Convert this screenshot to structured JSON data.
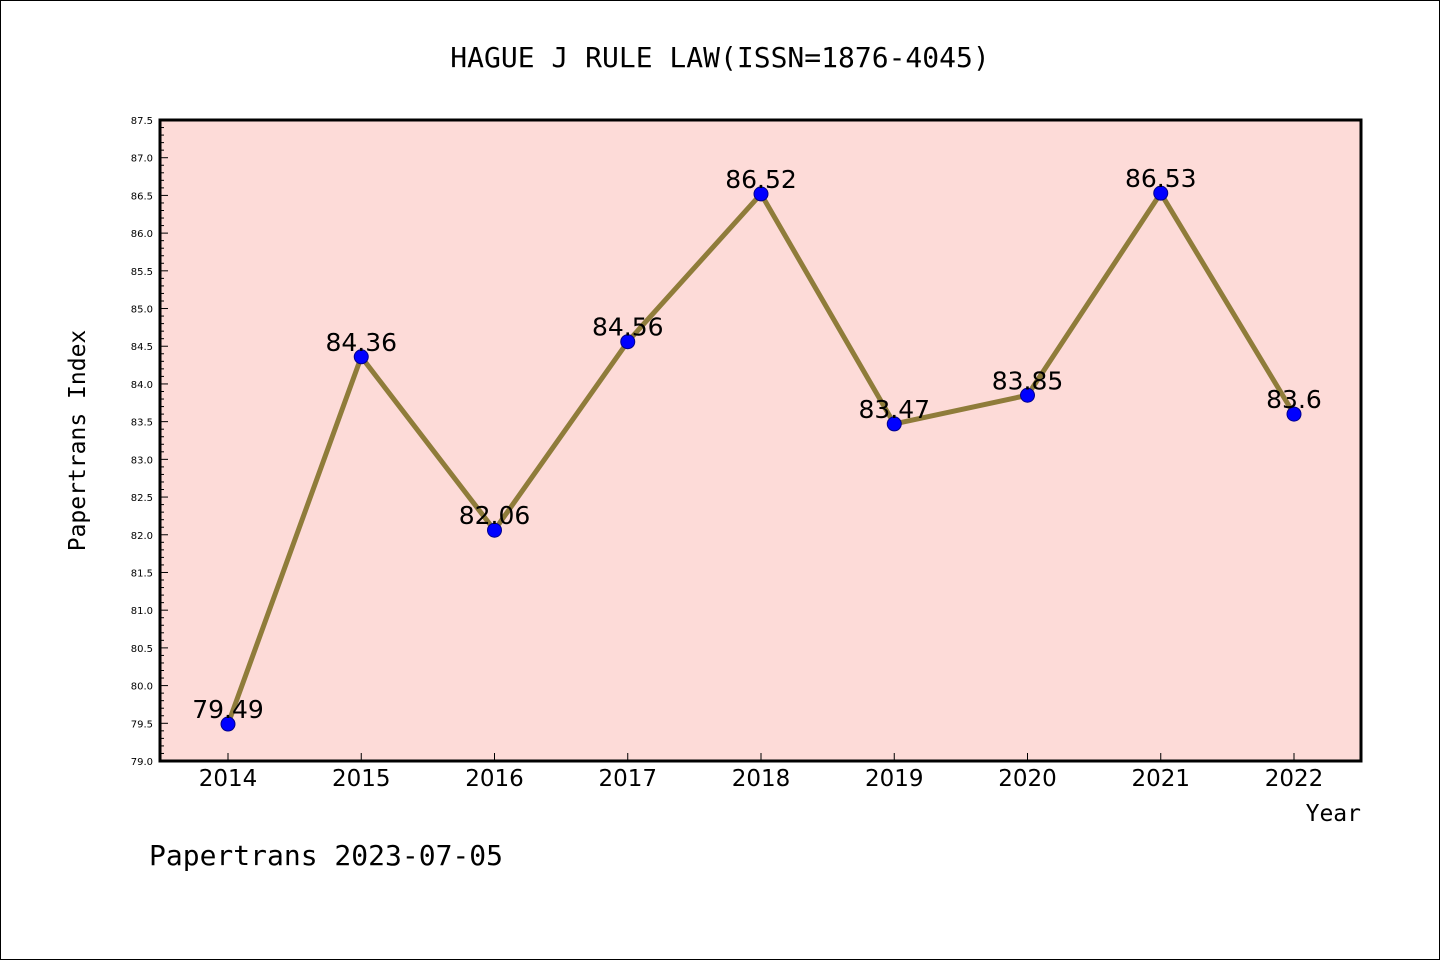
{
  "chart_data": {
    "type": "line",
    "title": "HAGUE J RULE LAW(ISSN=1876-4045)",
    "xlabel": "Year",
    "ylabel": "Papertrans Index",
    "categories": [
      "2014",
      "2015",
      "2016",
      "2017",
      "2018",
      "2019",
      "2020",
      "2021",
      "2022"
    ],
    "values": [
      79.49,
      84.36,
      82.06,
      84.56,
      86.52,
      83.47,
      83.85,
      86.53,
      83.6
    ],
    "data_labels": [
      "79.49",
      "84.36",
      "82.06",
      "84.56",
      "86.52",
      "83.47",
      "83.85",
      "86.53",
      "83.6"
    ],
    "ylim": [
      79.0,
      87.5
    ],
    "ytick_step": 0.5,
    "ytick_labels": [
      "79.0",
      "79.5",
      "80.0",
      "80.5",
      "81.0",
      "81.5",
      "82.0",
      "82.5",
      "83.0",
      "83.5",
      "84.0",
      "84.5",
      "85.0",
      "85.5",
      "86.0",
      "86.5",
      "87.0",
      "87.5"
    ],
    "grid": false,
    "legend": "none",
    "colors": {
      "plot_background": "#fddbd8",
      "line": "#8f7c3a",
      "marker": "#0000ff"
    }
  },
  "footer": {
    "text": "Papertrans 2023-07-05"
  }
}
